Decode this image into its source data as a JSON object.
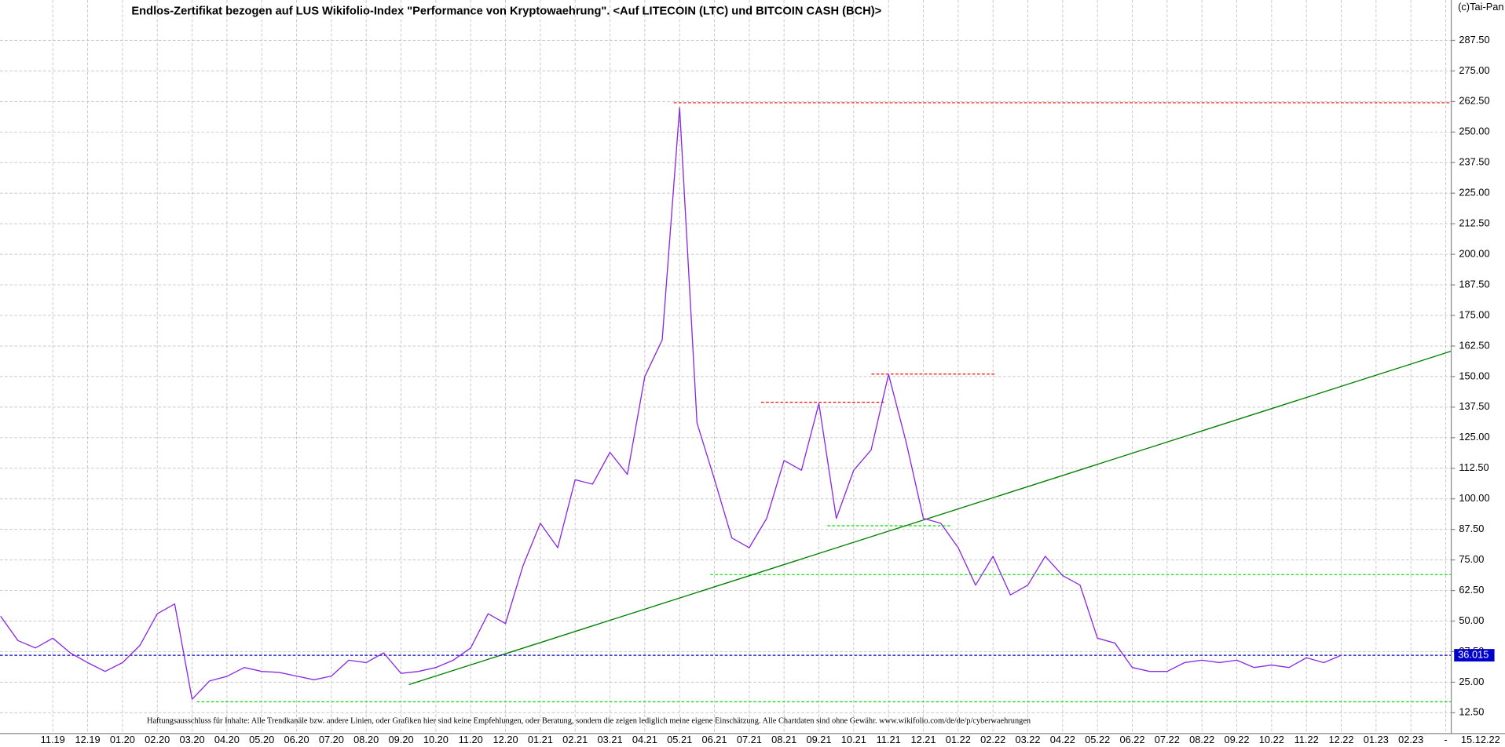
{
  "chart_data": {
    "type": "line",
    "title": "Endlos-Zertifikat bezogen auf LUS Wikifolio-Index \"Performance von Kryptowaehrung\". <Auf LITECOIN (LTC) und BITCOIN CASH (BCH)>",
    "copyright": "(c)Tai-Pan",
    "disclaimer": "Haftungsausschluss für Inhalte: Alle Trendkanäle bzw. andere Linien, oder Grafiken hier sind keine Empfehlungen, oder Beratung, sondern die zeigen lediglich meine eigene Einschätzung. Alle Chartdaten sind ohne Gewähr.  www.wikifolio.com/de/de/p/cyberwaehrungen",
    "categories": [
      null,
      null,
      null,
      "11.19",
      null,
      "12.19",
      null,
      "01.20",
      null,
      "02.20",
      null,
      "03.20",
      null,
      "04.20",
      null,
      "05.20",
      null,
      "06.20",
      null,
      "07.20",
      null,
      "08.20",
      null,
      "09.20",
      null,
      "10.20",
      null,
      "11.20",
      null,
      "12.20",
      null,
      "01.21",
      null,
      "02.21",
      null,
      "03.21",
      null,
      "04.21",
      null,
      "05.21",
      null,
      "06.21",
      null,
      "07.21",
      null,
      "08.21",
      null,
      "09.21",
      null,
      "10.21",
      null,
      "11.21",
      null,
      "12.21",
      null,
      "01.22",
      null,
      "02.22",
      null,
      "03.22",
      null,
      "04.22",
      null,
      "05.22",
      null,
      "06.22",
      null,
      "07.22",
      null,
      "08.22",
      null,
      "09.22",
      null,
      "10.22",
      null,
      "11.22",
      null,
      "12.22",
      null,
      "01.23",
      null,
      "02.23",
      null,
      "-",
      null,
      "15.12.22"
    ],
    "series": [
      {
        "color": "#8a2be2",
        "values": [
          52,
          42,
          39,
          43,
          37,
          33,
          29.4,
          33,
          40,
          53,
          57,
          18,
          25.5,
          27.4,
          31,
          29.4,
          29,
          27.5,
          26,
          27.5,
          34,
          33,
          37,
          28.6,
          29.4,
          31,
          34,
          39,
          53,
          49,
          72.5,
          90,
          80,
          107.8,
          106,
          119,
          110,
          150,
          165,
          260,
          131,
          108,
          84,
          80,
          92,
          115.7,
          111.7,
          139,
          92,
          111.7,
          120,
          150.9,
          123.5,
          92,
          90,
          80,
          64.7,
          76.5,
          60.7,
          64.7,
          76.5,
          68.6,
          64.7,
          43,
          41,
          31,
          29.4,
          29.4,
          33,
          34,
          33,
          34,
          31,
          32,
          31,
          35,
          33,
          36.015,
          null,
          null,
          null,
          null,
          null,
          null,
          null,
          null
        ]
      }
    ],
    "current_price": {
      "value": 36.015,
      "label": "36.015",
      "color": "#0000cc"
    },
    "levels": [
      {
        "value": 262,
        "color": "#ff0000"
      },
      {
        "value": 139.5,
        "color": "#ff0000"
      },
      {
        "value": 151,
        "color": "#ff0000"
      },
      {
        "value": 89,
        "color": "#00dd00"
      },
      {
        "value": 69,
        "color": "#00dd00"
      },
      {
        "value": 17,
        "color": "#00dd00"
      }
    ],
    "trendline": {
      "values": [
        24,
        160.4
      ],
      "color": "#008000"
    },
    "ylim": [
      4,
      304
    ],
    "yticks": [
      {
        "value": 12.5,
        "label": "12.50"
      },
      {
        "value": 25,
        "label": "25.00"
      },
      {
        "value": 37.5,
        "label": "37.50"
      },
      {
        "value": 50,
        "label": "50.00"
      },
      {
        "value": 62.5,
        "label": "62.50"
      },
      {
        "value": 75,
        "label": "75.00"
      },
      {
        "value": 87.5,
        "label": "87.50"
      },
      {
        "value": 100,
        "label": "100.00"
      },
      {
        "value": 112.5,
        "label": "112.50"
      },
      {
        "value": 125,
        "label": "125.00"
      },
      {
        "value": 137.5,
        "label": "137.50"
      },
      {
        "value": 150,
        "label": "150.00"
      },
      {
        "value": 162.5,
        "label": "162.50"
      },
      {
        "value": 175,
        "label": "175.00"
      },
      {
        "value": 187.5,
        "label": "187.50"
      },
      {
        "value": 200,
        "label": "200.00"
      },
      {
        "value": 212.5,
        "label": "212.50"
      },
      {
        "value": 225,
        "label": "225.00"
      },
      {
        "value": 237.5,
        "label": "237.50"
      },
      {
        "value": 250,
        "label": "250.00"
      },
      {
        "value": 262.5,
        "label": "262.50"
      },
      {
        "value": 275,
        "label": "275.00"
      },
      {
        "value": 287.5,
        "label": "287.50"
      }
    ],
    "grid": true
  }
}
